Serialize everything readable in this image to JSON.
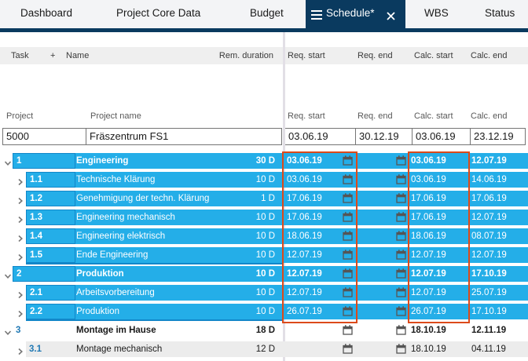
{
  "colors": {
    "accent_cyan": "#24aee8",
    "navy": "#0a3a5f",
    "tabbar_bg": "#f3f4f6",
    "header_bg": "#efefef",
    "annotation_red": "#dc4a1a",
    "cell_border_blue": "#1287c9",
    "link_blue": "#1f78b4",
    "shaded_row": "#ececec",
    "splitter": "#e2dfe6"
  },
  "tabs": [
    {
      "label": "Dashboard",
      "active": false
    },
    {
      "label": "Project Core Data",
      "active": false
    },
    {
      "label": "Budget",
      "active": false
    },
    {
      "label": "Schedule*",
      "active": true
    },
    {
      "label": "WBS",
      "active": false
    },
    {
      "label": "Status",
      "active": false
    }
  ],
  "header": {
    "task": "Task",
    "add": "+",
    "name": "Name",
    "rem_duration": "Rem. duration",
    "req_start": "Req. start",
    "req_end": "Req. end",
    "calc_start": "Calc. start",
    "calc_end": "Calc. end"
  },
  "project_header": {
    "project": "Project",
    "project_name": "Project name",
    "req_start": "Req. start",
    "req_end": "Req. end",
    "calc_start": "Calc. start",
    "calc_end": "Calc. end"
  },
  "project": {
    "id": "5000",
    "name": "Fräszentrum FS1",
    "req_start": "03.06.19",
    "req_end": "30.12.19",
    "calc_start": "03.06.19",
    "calc_end": "23.12.19"
  },
  "tasks": [
    {
      "id": "1",
      "name": "Engineering",
      "duration": "30 D",
      "req_start": "03.06.19",
      "calc_start": "03.06.19",
      "calc_end": "12.07.19",
      "level": 1,
      "expanded": true,
      "bold": true,
      "highlight": "cyan",
      "group_end": false
    },
    {
      "id": "1.1",
      "name": "Technische Klärung",
      "duration": "10 D",
      "req_start": "03.06.19",
      "calc_start": "03.06.19",
      "calc_end": "14.06.19",
      "level": 2,
      "expanded": false,
      "bold": false,
      "highlight": "cyan",
      "group_end": false
    },
    {
      "id": "1.2",
      "name": "Genehmigung der techn. Klärung",
      "duration": "1 D",
      "req_start": "17.06.19",
      "calc_start": "17.06.19",
      "calc_end": "17.06.19",
      "level": 2,
      "expanded": false,
      "bold": false,
      "highlight": "cyan",
      "group_end": false
    },
    {
      "id": "1.3",
      "name": "Engineering mechanisch",
      "duration": "10 D",
      "req_start": "17.06.19",
      "calc_start": "17.06.19",
      "calc_end": "12.07.19",
      "level": 2,
      "expanded": false,
      "bold": false,
      "highlight": "cyan",
      "group_end": false
    },
    {
      "id": "1.4",
      "name": "Engineering elektrisch",
      "duration": "10 D",
      "req_start": "18.06.19",
      "calc_start": "18.06.19",
      "calc_end": "08.07.19",
      "level": 2,
      "expanded": false,
      "bold": false,
      "highlight": "cyan",
      "group_end": false
    },
    {
      "id": "1.5",
      "name": "Ende Engineering",
      "duration": "10 D",
      "req_start": "12.07.19",
      "calc_start": "12.07.19",
      "calc_end": "12.07.19",
      "level": 2,
      "expanded": false,
      "bold": false,
      "highlight": "cyan",
      "group_end": true
    },
    {
      "id": "2",
      "name": "Produktion",
      "duration": "10 D",
      "req_start": "12.07.19",
      "calc_start": "12.07.19",
      "calc_end": "17.10.19",
      "level": 1,
      "expanded": true,
      "bold": true,
      "highlight": "cyan",
      "group_end": false
    },
    {
      "id": "2.1",
      "name": "Arbeitsvorbereitung",
      "duration": "10 D",
      "req_start": "12.07.19",
      "calc_start": "12.07.19",
      "calc_end": "25.07.19",
      "level": 2,
      "expanded": false,
      "bold": false,
      "highlight": "cyan",
      "group_end": false
    },
    {
      "id": "2.2",
      "name": "Produktion",
      "duration": "10 D",
      "req_start": "26.07.19",
      "calc_start": "26.07.19",
      "calc_end": "17.10.19",
      "level": 2,
      "expanded": false,
      "bold": false,
      "highlight": "cyan",
      "group_end": true
    },
    {
      "id": "3",
      "name": "Montage im Hause",
      "duration": "18 D",
      "req_start": "",
      "calc_start": "18.10.19",
      "calc_end": "12.11.19",
      "level": 1,
      "expanded": true,
      "bold": true,
      "highlight": "none",
      "group_end": false
    },
    {
      "id": "3.1",
      "name": "Montage mechanisch",
      "duration": "12 D",
      "req_start": "",
      "calc_start": "18.10.19",
      "calc_end": "04.11.19",
      "level": 2,
      "expanded": false,
      "bold": false,
      "highlight": "gray",
      "group_end": false
    }
  ]
}
